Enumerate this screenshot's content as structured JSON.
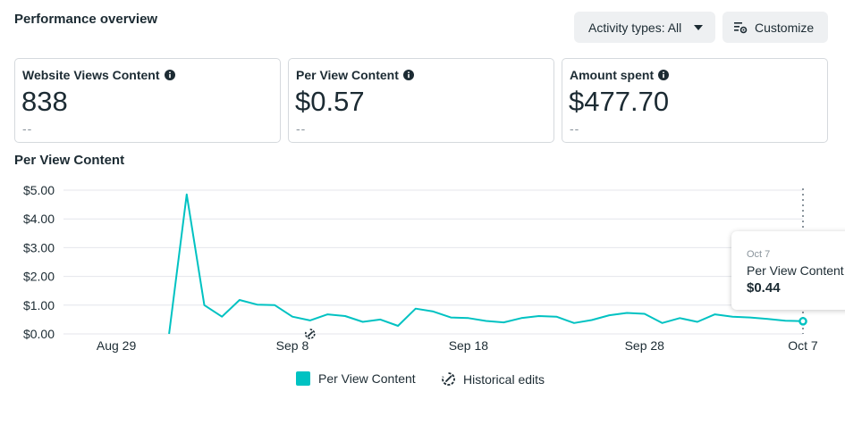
{
  "header": {
    "title": "Performance overview",
    "activity_types_label": "Activity types: All",
    "customize_label": "Customize"
  },
  "cards": [
    {
      "label": "Website Views Content",
      "value": "838",
      "delta": "--"
    },
    {
      "label": "Per View Content",
      "value": "$0.57",
      "delta": "--"
    },
    {
      "label": "Amount spent",
      "value": "$477.70",
      "delta": "--"
    }
  ],
  "section_title": "Per View Content",
  "tooltip": {
    "date": "Oct 7",
    "label": "Per View Content",
    "value": "$0.44"
  },
  "legend": {
    "series_label": "Per View Content",
    "edits_label": "Historical edits"
  },
  "colors": {
    "series": "#00c2c2",
    "grid": "#e4e6eb",
    "text": "#1c2b33",
    "muted": "#8a949c"
  },
  "chart_data": {
    "type": "line",
    "title": "Per View Content",
    "ylim": [
      0,
      5
    ],
    "y_ticks": [
      "$0.00",
      "$1.00",
      "$2.00",
      "$3.00",
      "$4.00",
      "$5.00"
    ],
    "x_ticks": [
      "Aug 29",
      "Sep 8",
      "Sep 18",
      "Sep 28",
      "Oct 7"
    ],
    "x_range": [
      "2023-08-26",
      "2023-10-07"
    ],
    "series": [
      {
        "name": "Per View Content",
        "points": [
          [
            "2023-09-01",
            0.0
          ],
          [
            "2023-09-02",
            4.85
          ],
          [
            "2023-09-03",
            1.0
          ],
          [
            "2023-09-04",
            0.6
          ],
          [
            "2023-09-05",
            1.18
          ],
          [
            "2023-09-06",
            1.02
          ],
          [
            "2023-09-07",
            1.0
          ],
          [
            "2023-09-08",
            0.6
          ],
          [
            "2023-09-09",
            0.47
          ],
          [
            "2023-09-10",
            0.68
          ],
          [
            "2023-09-11",
            0.62
          ],
          [
            "2023-09-12",
            0.42
          ],
          [
            "2023-09-13",
            0.5
          ],
          [
            "2023-09-14",
            0.28
          ],
          [
            "2023-09-15",
            0.88
          ],
          [
            "2023-09-16",
            0.78
          ],
          [
            "2023-09-17",
            0.57
          ],
          [
            "2023-09-18",
            0.55
          ],
          [
            "2023-09-19",
            0.45
          ],
          [
            "2023-09-20",
            0.4
          ],
          [
            "2023-09-21",
            0.55
          ],
          [
            "2023-09-22",
            0.62
          ],
          [
            "2023-09-23",
            0.6
          ],
          [
            "2023-09-24",
            0.38
          ],
          [
            "2023-09-25",
            0.48
          ],
          [
            "2023-09-26",
            0.65
          ],
          [
            "2023-09-27",
            0.73
          ],
          [
            "2023-09-28",
            0.7
          ],
          [
            "2023-09-29",
            0.38
          ],
          [
            "2023-09-30",
            0.55
          ],
          [
            "2023-10-01",
            0.42
          ],
          [
            "2023-10-02",
            0.68
          ],
          [
            "2023-10-03",
            0.6
          ],
          [
            "2023-10-04",
            0.57
          ],
          [
            "2023-10-05",
            0.52
          ],
          [
            "2023-10-06",
            0.46
          ],
          [
            "2023-10-07",
            0.44
          ]
        ]
      }
    ],
    "historical_edit_dates": [
      "2023-09-09"
    ],
    "highlighted_date": "2023-10-07",
    "grid": true,
    "legend_position": "bottom"
  }
}
